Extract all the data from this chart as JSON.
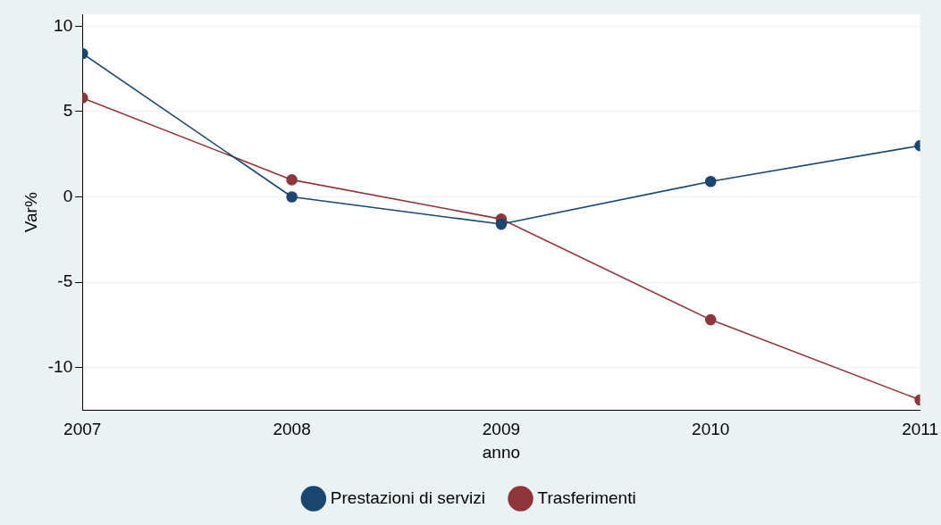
{
  "chart_data": {
    "type": "line",
    "xlabel": "anno",
    "ylabel": "Var%",
    "x": [
      2007,
      2008,
      2009,
      2010,
      2011
    ],
    "series": [
      {
        "name": "Prestazioni di servizi",
        "color": "#1a476f",
        "values": [
          8.4,
          0,
          -1.6,
          0.9,
          3.0
        ]
      },
      {
        "name": "Trasferimenti",
        "color": "#90353b",
        "values": [
          5.8,
          1.0,
          -1.3,
          -7.2,
          -11.9
        ]
      }
    ],
    "xlim": [
      2007,
      2011
    ],
    "xticks": [
      2007,
      2008,
      2009,
      2010,
      2011
    ],
    "ylim": [
      -12.5,
      10.7
    ],
    "yticks": [
      -10,
      -5,
      0,
      5,
      10
    ],
    "grid": "y",
    "legend": "bottom",
    "marker": "circle",
    "line_style": "solid"
  }
}
